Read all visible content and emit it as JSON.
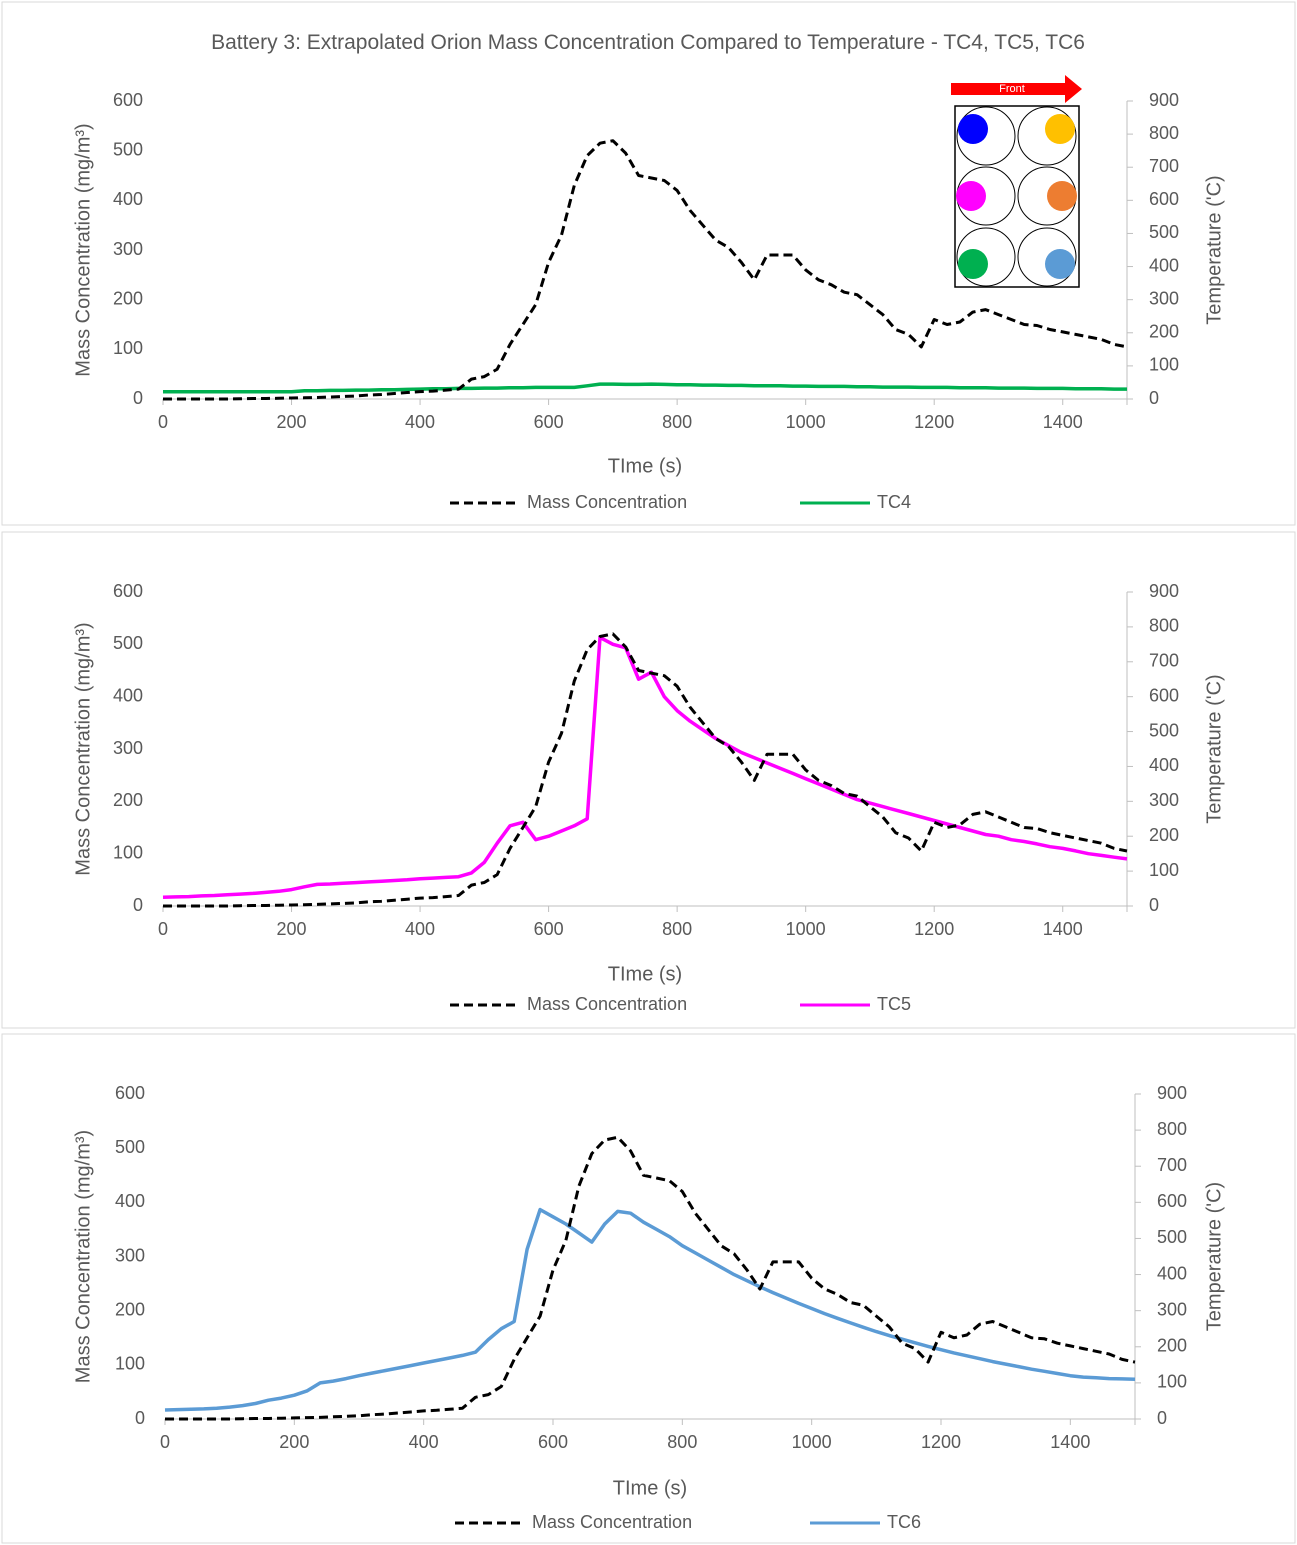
{
  "chart_data": [
    {
      "type": "line",
      "title": "Battery 3: Extrapolated Orion Mass Concentration Compared to Temperature - TC4, TC5, TC6",
      "inset_label": "Front",
      "x_label": "TIme (s)",
      "y_label": "Mass Concentration (mg/m³)",
      "y2_label": "Temperature ('C)",
      "xlim": [
        0,
        1500
      ],
      "xticks": [
        0,
        200,
        400,
        600,
        800,
        1000,
        1200,
        1400
      ],
      "ylim": [
        0,
        600
      ],
      "yticks": [
        0,
        100,
        200,
        300,
        400,
        500,
        600
      ],
      "y2lim": [
        0,
        900
      ],
      "y2ticks": [
        0,
        100,
        200,
        300,
        400,
        500,
        600,
        700,
        800,
        900
      ],
      "legend": "bottom",
      "x": [
        0,
        20,
        40,
        60,
        80,
        100,
        120,
        140,
        160,
        180,
        200,
        220,
        240,
        260,
        280,
        300,
        320,
        340,
        360,
        380,
        400,
        420,
        440,
        460,
        480,
        500,
        520,
        540,
        560,
        580,
        600,
        620,
        640,
        660,
        680,
        700,
        720,
        740,
        760,
        780,
        800,
        820,
        840,
        860,
        880,
        900,
        920,
        940,
        960,
        980,
        1000,
        1020,
        1040,
        1060,
        1080,
        1100,
        1120,
        1140,
        1160,
        1180,
        1200,
        1220,
        1240,
        1260,
        1280,
        1300,
        1320,
        1340,
        1360,
        1380,
        1400,
        1420,
        1440,
        1460,
        1480,
        1500
      ],
      "series": [
        {
          "name": "Mass Concentration",
          "color": "#000000",
          "dash": true,
          "values": [
            0,
            0,
            0,
            0,
            0,
            0,
            0.5,
            1,
            1,
            1.5,
            2,
            2.5,
            3,
            4,
            5,
            6,
            8,
            9,
            11,
            13,
            15,
            16,
            18,
            20,
            40,
            45,
            60,
            110,
            150,
            190,
            275,
            330,
            430,
            490,
            515,
            520,
            495,
            450,
            445,
            440,
            420,
            380,
            350,
            320,
            305,
            275,
            240,
            290,
            290,
            290,
            260,
            240,
            230,
            215,
            210,
            190,
            170,
            140,
            130,
            105,
            160,
            150,
            155,
            175,
            180,
            170,
            160,
            150,
            148,
            140,
            135,
            130,
            125,
            120,
            110,
            105
          ]
        },
        {
          "name": "TC4",
          "color": "#00b050",
          "axis": "y2",
          "values": [
            22,
            22,
            22,
            22,
            22,
            22,
            22,
            22,
            22,
            22,
            22,
            25,
            25,
            26,
            26,
            27,
            27,
            28,
            28,
            29,
            30,
            31,
            31,
            32,
            32,
            33,
            33,
            34,
            34,
            35,
            35,
            35,
            35,
            40,
            45,
            45,
            44,
            44,
            45,
            44,
            43,
            43,
            42,
            42,
            41,
            41,
            40,
            40,
            40,
            39,
            39,
            38,
            38,
            38,
            37,
            37,
            36,
            36,
            36,
            35,
            35,
            35,
            34,
            34,
            34,
            33,
            33,
            33,
            32,
            32,
            32,
            31,
            31,
            31,
            30,
            30
          ]
        }
      ]
    },
    {
      "type": "line",
      "x_label": "TIme (s)",
      "y_label": "Mass Concentration (mg/m³)",
      "y2_label": "Temperature ('C)",
      "xlim": [
        0,
        1500
      ],
      "xticks": [
        0,
        200,
        400,
        600,
        800,
        1000,
        1200,
        1400
      ],
      "ylim": [
        0,
        600
      ],
      "yticks": [
        0,
        100,
        200,
        300,
        400,
        500,
        600
      ],
      "y2lim": [
        0,
        900
      ],
      "y2ticks": [
        0,
        100,
        200,
        300,
        400,
        500,
        600,
        700,
        800,
        900
      ],
      "legend": "bottom",
      "x": [
        0,
        20,
        40,
        60,
        80,
        100,
        120,
        140,
        160,
        180,
        200,
        220,
        240,
        260,
        280,
        300,
        320,
        340,
        360,
        380,
        400,
        420,
        440,
        460,
        480,
        500,
        520,
        540,
        560,
        580,
        600,
        620,
        640,
        660,
        680,
        700,
        720,
        740,
        760,
        780,
        800,
        820,
        840,
        860,
        880,
        900,
        920,
        940,
        960,
        980,
        1000,
        1020,
        1040,
        1060,
        1080,
        1100,
        1120,
        1140,
        1160,
        1180,
        1200,
        1220,
        1240,
        1260,
        1280,
        1300,
        1320,
        1340,
        1360,
        1380,
        1400,
        1420,
        1440,
        1460,
        1480,
        1500
      ],
      "series": [
        {
          "name": "Mass Concentration",
          "color": "#000000",
          "dash": true,
          "values": [
            0,
            0,
            0,
            0,
            0,
            0,
            0.5,
            1,
            1,
            1.5,
            2,
            2.5,
            3,
            4,
            5,
            6,
            8,
            9,
            11,
            13,
            15,
            16,
            18,
            20,
            40,
            45,
            60,
            110,
            150,
            190,
            275,
            330,
            430,
            490,
            515,
            520,
            495,
            450,
            445,
            440,
            420,
            380,
            350,
            320,
            305,
            275,
            240,
            290,
            290,
            290,
            260,
            240,
            230,
            215,
            210,
            190,
            170,
            140,
            130,
            105,
            160,
            150,
            155,
            175,
            180,
            170,
            160,
            150,
            148,
            140,
            135,
            130,
            125,
            120,
            110,
            105
          ]
        },
        {
          "name": "TC5",
          "color": "#ff00ff",
          "axis": "y2",
          "values": [
            25,
            26,
            27,
            29,
            30,
            32,
            34,
            36,
            39,
            42,
            47,
            55,
            62,
            63,
            65,
            67,
            69,
            71,
            73,
            75,
            78,
            80,
            82,
            84,
            95,
            125,
            180,
            230,
            240,
            190,
            200,
            215,
            230,
            250,
            770,
            750,
            740,
            650,
            670,
            600,
            560,
            530,
            505,
            480,
            460,
            440,
            425,
            410,
            395,
            380,
            365,
            350,
            335,
            320,
            305,
            295,
            285,
            275,
            265,
            255,
            245,
            235,
            225,
            215,
            205,
            200,
            190,
            185,
            178,
            170,
            165,
            158,
            150,
            145,
            140,
            135
          ]
        }
      ]
    },
    {
      "type": "line",
      "x_label": "TIme (s)",
      "y_label": "Mass Concentration (mg/m³)",
      "y2_label": "Temperature ('C)",
      "xlim": [
        0,
        1500
      ],
      "xticks": [
        0,
        200,
        400,
        600,
        800,
        1000,
        1200,
        1400
      ],
      "ylim": [
        0,
        600
      ],
      "yticks": [
        0,
        100,
        200,
        300,
        400,
        500,
        600
      ],
      "y2lim": [
        0,
        900
      ],
      "y2ticks": [
        0,
        100,
        200,
        300,
        400,
        500,
        600,
        700,
        800,
        900
      ],
      "legend": "bottom",
      "x": [
        0,
        20,
        40,
        60,
        80,
        100,
        120,
        140,
        160,
        180,
        200,
        220,
        240,
        260,
        280,
        300,
        320,
        340,
        360,
        380,
        400,
        420,
        440,
        460,
        480,
        500,
        520,
        540,
        560,
        580,
        600,
        620,
        640,
        660,
        680,
        700,
        720,
        740,
        760,
        780,
        800,
        820,
        840,
        860,
        880,
        900,
        920,
        940,
        960,
        980,
        1000,
        1020,
        1040,
        1060,
        1080,
        1100,
        1120,
        1140,
        1160,
        1180,
        1200,
        1220,
        1240,
        1260,
        1280,
        1300,
        1320,
        1340,
        1360,
        1380,
        1400,
        1420,
        1440,
        1460,
        1480,
        1500
      ],
      "series": [
        {
          "name": "Mass Concentration",
          "color": "#000000",
          "dash": true,
          "values": [
            0,
            0,
            0,
            0,
            0,
            0,
            0.5,
            1,
            1,
            1.5,
            2,
            2.5,
            3,
            4,
            5,
            6,
            8,
            9,
            11,
            13,
            15,
            16,
            18,
            20,
            40,
            45,
            60,
            110,
            150,
            190,
            275,
            330,
            430,
            490,
            515,
            520,
            495,
            450,
            445,
            440,
            420,
            380,
            350,
            320,
            305,
            275,
            240,
            290,
            290,
            290,
            260,
            240,
            230,
            215,
            210,
            190,
            170,
            140,
            130,
            105,
            160,
            150,
            155,
            175,
            180,
            170,
            160,
            150,
            148,
            140,
            135,
            130,
            125,
            120,
            110,
            105
          ]
        },
        {
          "name": "TC6",
          "color": "#5b9bd5",
          "axis": "y2",
          "values": [
            25,
            26,
            27,
            28,
            30,
            33,
            37,
            43,
            52,
            58,
            66,
            78,
            100,
            105,
            112,
            120,
            127,
            134,
            141,
            148,
            155,
            162,
            169,
            176,
            185,
            220,
            250,
            270,
            470,
            580,
            560,
            540,
            515,
            490,
            540,
            575,
            570,
            545,
            525,
            505,
            480,
            460,
            440,
            420,
            400,
            383,
            366,
            350,
            335,
            320,
            306,
            292,
            279,
            266,
            254,
            242,
            231,
            221,
            211,
            201,
            192,
            183,
            175,
            167,
            159,
            152,
            145,
            138,
            132,
            126,
            120,
            116,
            114,
            112,
            111,
            110
          ]
        }
      ]
    }
  ]
}
